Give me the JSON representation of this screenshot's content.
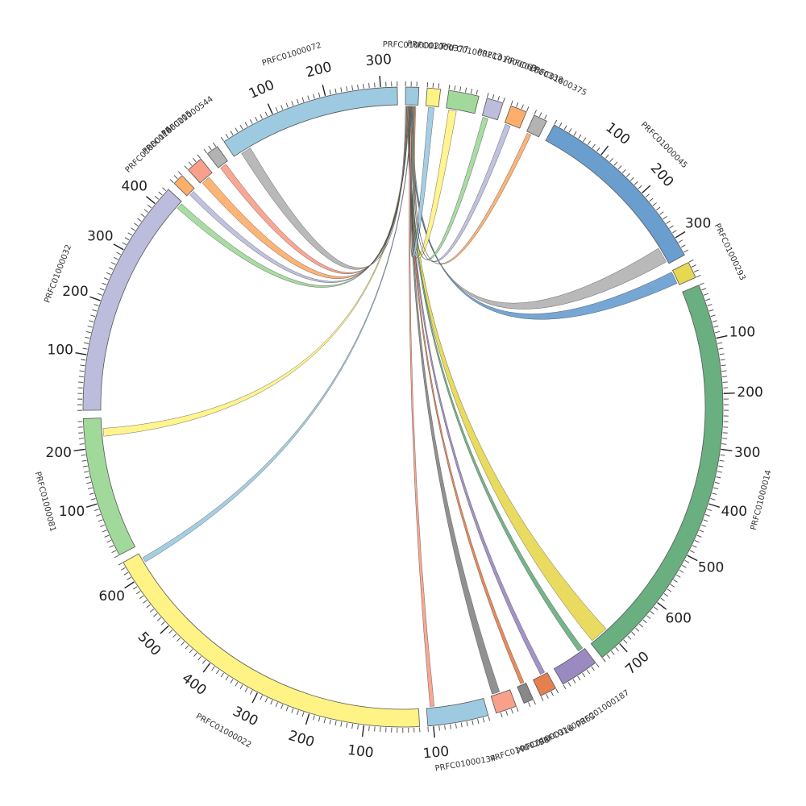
{
  "chart_data": {
    "type": "chord",
    "title": "",
    "segments": [
      {
        "id": "PRFC01000021",
        "len": 24,
        "color": "#9ecae1"
      },
      {
        "id": "PRFC01000377",
        "len": 24,
        "color": "#fff385"
      },
      {
        "id": "PRFC01000213",
        "len": 55,
        "color": "#a1d99b"
      },
      {
        "id": "PRFC01000063",
        "len": 30,
        "color": "#bcbddc"
      },
      {
        "id": "PRFC01000338",
        "len": 30,
        "color": "#fdae6b"
      },
      {
        "id": "PRFC01000375",
        "len": 25,
        "color": "#b3b3b3"
      },
      {
        "id": "PRFC01000045",
        "len": 335,
        "color": "#6a9ecf"
      },
      {
        "id": "PRFC01000293",
        "len": 30,
        "color": "#e6d853"
      },
      {
        "id": "PRFC01000014",
        "len": 740,
        "color": "#6aaf80"
      },
      {
        "id": "PRFC01000187",
        "len": 70,
        "color": "#9b8ac1"
      },
      {
        "id": "PRFC01000363",
        "len": 30,
        "color": "#e6804f"
      },
      {
        "id": "PRFC01000316",
        "len": 18,
        "color": "#888888"
      },
      {
        "id": "PRFC01000230",
        "len": 38,
        "color": "#f8a08a"
      },
      {
        "id": "PRFC01000134",
        "len": 110,
        "color": "#9ecae1"
      },
      {
        "id": "PRFC01000022",
        "len": 640,
        "color": "#fff385"
      },
      {
        "id": "PRFC01000081",
        "len": 255,
        "color": "#a1d99b"
      },
      {
        "id": "PRFC01000032",
        "len": 435,
        "color": "#bcbddc"
      },
      {
        "id": "PRFC01000176",
        "len": 20,
        "color": "#fdae6b"
      },
      {
        "id": "PRFC01000205",
        "len": 30,
        "color": "#f8a08a"
      },
      {
        "id": "PRFC01000544",
        "len": 22,
        "color": "#b3b3b3"
      },
      {
        "id": "PRFC01000072",
        "len": 330,
        "color": "#9ecae1"
      }
    ],
    "segment_labels": [
      {
        "id": "PRFC01000021",
        "text": "PRFC01000021"
      },
      {
        "id": "PRFC01000377",
        "text": "PRFC01000377"
      },
      {
        "id": "PRFC01000213",
        "text": "PRFC01000213"
      },
      {
        "id": "PRFC01000063",
        "text": "PRFC01000063"
      },
      {
        "id": "PRFC01000338",
        "text": "PRFC01000338"
      },
      {
        "id": "PRFC01000375",
        "text": "PRFC01000375"
      },
      {
        "id": "PRFC01000045",
        "text": "PRFC01000045"
      },
      {
        "id": "PRFC01000293",
        "text": "PRFC01000293"
      },
      {
        "id": "PRFC01000014",
        "text": "PRFC01000014"
      },
      {
        "id": "PRFC01000187",
        "text": "PRFC01000187"
      },
      {
        "id": "PRFC01000363",
        "text": "PRFC01000363"
      },
      {
        "id": "PRFC01000316",
        "text": "PRFC01000316"
      },
      {
        "id": "PRFC01000230",
        "text": "PRFC01000230"
      },
      {
        "id": "PRFC01000134",
        "text": "PRFC01000134"
      },
      {
        "id": "PRFC01000022",
        "text": "PRFC01000022"
      },
      {
        "id": "PRFC01000081",
        "text": "PRFC01000081"
      },
      {
        "id": "PRFC01000032",
        "text": "PRFC01000032"
      },
      {
        "id": "PRFC01000176",
        "text": "PRFC01000176"
      },
      {
        "id": "PRFC01000205",
        "text": "PRFC01000205"
      },
      {
        "id": "PRFC01000544",
        "text": "PRFC01000544"
      },
      {
        "id": "PRFC01000072",
        "text": "PRFC01000072"
      }
    ],
    "tick_labels": [
      "100",
      "200",
      "300",
      "400",
      "500",
      "600",
      "700"
    ],
    "links": [
      {
        "from": "PRFC01000021",
        "from_pos": [
          5,
          8
        ],
        "to": "PRFC01000014",
        "to_pos": [
          700,
          735
        ],
        "color": "#e6d853"
      },
      {
        "from": "PRFC01000021",
        "from_pos": [
          6,
          9
        ],
        "to": "PRFC01000187",
        "to_pos": [
          3,
          13
        ],
        "color": "#6aaf80"
      },
      {
        "from": "PRFC01000021",
        "from_pos": [
          7,
          10
        ],
        "to": "PRFC01000363",
        "to_pos": [
          4,
          13
        ],
        "color": "#9b8ac1"
      },
      {
        "from": "PRFC01000021",
        "from_pos": [
          8,
          11
        ],
        "to": "PRFC01000316",
        "to_pos": [
          3,
          10
        ],
        "color": "#e6804f"
      },
      {
        "from": "PRFC01000021",
        "from_pos": [
          9,
          12
        ],
        "to": "PRFC01000230",
        "to_pos": [
          20,
          35
        ],
        "color": "#888888"
      },
      {
        "from": "PRFC01000021",
        "from_pos": [
          10,
          13
        ],
        "to": "PRFC01000134",
        "to_pos": [
          95,
          103
        ],
        "color": "#f8a08a"
      },
      {
        "from": "PRFC01000021",
        "from_pos": [
          11,
          12
        ],
        "to": "PRFC01000022",
        "to_pos": [
          620,
          630
        ],
        "color": "#9ecae1"
      },
      {
        "from": "PRFC01000021",
        "from_pos": [
          12,
          14
        ],
        "to": "PRFC01000045",
        "to_pos": [
          300,
          330
        ],
        "color": "#b3b3b3"
      },
      {
        "from": "PRFC01000021",
        "from_pos": [
          13,
          16
        ],
        "to": "PRFC01000293",
        "to_pos": [
          2,
          26
        ],
        "color": "#6a9ecf"
      },
      {
        "from": "PRFC01000021",
        "from_pos": [
          14,
          16
        ],
        "to": "PRFC01000213",
        "to_pos": [
          5,
          20
        ],
        "color": "#fff385"
      },
      {
        "from": "PRFC01000021",
        "from_pos": [
          15,
          17
        ],
        "to": "PRFC01000377",
        "to_pos": [
          5,
          16
        ],
        "color": "#9ecae1"
      },
      {
        "from": "PRFC01000021",
        "from_pos": [
          16,
          18
        ],
        "to": "PRFC01000063",
        "to_pos": [
          2,
          12
        ],
        "color": "#a1d99b"
      },
      {
        "from": "PRFC01000021",
        "from_pos": [
          17,
          19
        ],
        "to": "PRFC01000338",
        "to_pos": [
          2,
          12
        ],
        "color": "#bcbddc"
      },
      {
        "from": "PRFC01000021",
        "from_pos": [
          18,
          20
        ],
        "to": "PRFC01000375",
        "to_pos": [
          2,
          10
        ],
        "color": "#fdae6b"
      },
      {
        "from": "PRFC01000021",
        "from_pos": [
          5,
          7
        ],
        "to": "PRFC01000081",
        "to_pos": [
          220,
          235
        ],
        "color": "#fff385"
      },
      {
        "from": "PRFC01000021",
        "from_pos": [
          4,
          6
        ],
        "to": "PRFC01000032",
        "to_pos": [
          420,
          432
        ],
        "color": "#a1d99b"
      },
      {
        "from": "PRFC01000021",
        "from_pos": [
          3,
          5
        ],
        "to": "PRFC01000176",
        "to_pos": [
          5,
          15
        ],
        "color": "#bcbddc"
      },
      {
        "from": "PRFC01000021",
        "from_pos": [
          2,
          4
        ],
        "to": "PRFC01000205",
        "to_pos": [
          3,
          20
        ],
        "color": "#fdae6b"
      },
      {
        "from": "PRFC01000021",
        "from_pos": [
          1,
          3
        ],
        "to": "PRFC01000544",
        "to_pos": [
          3,
          16
        ],
        "color": "#f8a08a"
      },
      {
        "from": "PRFC01000021",
        "from_pos": [
          0,
          2
        ],
        "to": "PRFC01000072",
        "to_pos": [
          15,
          35
        ],
        "color": "#b3b3b3"
      }
    ]
  }
}
